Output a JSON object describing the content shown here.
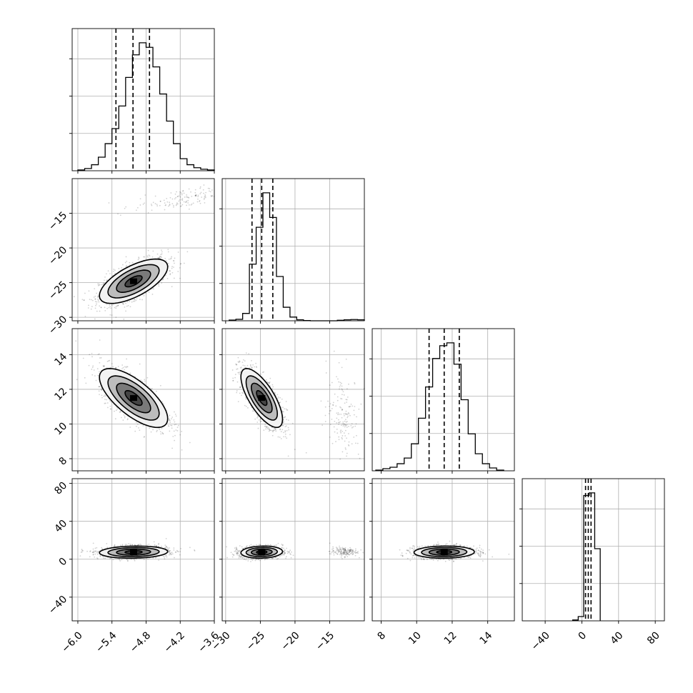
{
  "chart_data": {
    "type": "corner",
    "title": "",
    "grid": true,
    "quantile_lines": "dashed",
    "parameters": [
      {
        "xlim": [
          -6.1,
          -3.6
        ],
        "ticks": [
          -6.0,
          -5.4,
          -4.8,
          -4.2,
          -3.6
        ],
        "tick_labels": [
          "−6.0",
          "−5.4",
          "−4.8",
          "−4.2",
          "−3.6"
        ],
        "quantiles": [
          -5.33,
          -5.03,
          -4.74
        ]
      },
      {
        "xlim": [
          -30.5,
          -10
        ],
        "ticks": [
          -30,
          -25,
          -20,
          -15
        ],
        "tick_labels": [
          "−30",
          "−25",
          "−20",
          "−15"
        ],
        "quantiles": [
          -26.2,
          -24.8,
          -23.2
        ]
      },
      {
        "xlim": [
          7.5,
          15.5
        ],
        "ticks": [
          8,
          10,
          12,
          14
        ],
        "tick_labels": [
          "8",
          "10",
          "12",
          "14"
        ],
        "quantiles": [
          10.7,
          11.55,
          12.4
        ]
      },
      {
        "xlim": [
          -65,
          90
        ],
        "ticks": [
          -40,
          0,
          40,
          80
        ],
        "tick_labels": [
          "−40",
          "0",
          "40",
          "80"
        ],
        "quantiles": [
          4.0,
          7.0,
          10.0
        ]
      }
    ],
    "diagonal_histograms": [
      {
        "bins_from": -6.0,
        "bins_to": -3.6,
        "counts": [
          1,
          3,
          8,
          18,
          36,
          56,
          86,
          124,
          154,
          170,
          164,
          138,
          102,
          66,
          36,
          16,
          8,
          4,
          2,
          1
        ]
      },
      {
        "bins_from": -29.5,
        "bins_to": -10,
        "counts": [
          3,
          6,
          30,
          230,
          380,
          520,
          420,
          180,
          55,
          15,
          4,
          1,
          0,
          0,
          0,
          0,
          2,
          4,
          5,
          4
        ]
      },
      {
        "bins_from": 7.7,
        "bins_to": 14.9,
        "counts": [
          1,
          3,
          5,
          10,
          18,
          38,
          74,
          118,
          158,
          176,
          180,
          150,
          100,
          52,
          24,
          10,
          4,
          1
        ]
      },
      {
        "bins_from": -10,
        "bins_to": 20,
        "counts": [
          1,
          5,
          146,
          149,
          84
        ]
      }
    ],
    "pair_blobs": [
      {
        "row": 1,
        "col": 0,
        "center": [
          -5.02,
          -24.8
        ],
        "sd": [
          0.3,
          1.6
        ],
        "corr": 0.65,
        "secondary": {
          "center": [
            -4.1,
            -12.8
          ],
          "sd": [
            0.45,
            0.9
          ],
          "corr": 0.6
        }
      },
      {
        "row": 2,
        "col": 0,
        "center": [
          -5.02,
          11.5
        ],
        "sd": [
          0.3,
          0.85
        ],
        "corr": -0.7
      },
      {
        "row": 2,
        "col": 1,
        "center": [
          -24.8,
          11.5
        ],
        "sd": [
          1.5,
          0.85
        ],
        "corr": -0.72,
        "secondary": {
          "center": [
            -13,
            10.6
          ],
          "sd": [
            1.2,
            1.2
          ],
          "corr": -0.2
        }
      },
      {
        "row": 3,
        "col": 0,
        "center": [
          -5.02,
          7.5
        ],
        "sd": [
          0.3,
          3.2
        ],
        "corr": 0.1
      },
      {
        "row": 3,
        "col": 1,
        "center": [
          -24.8,
          7.5
        ],
        "sd": [
          1.5,
          3.2
        ],
        "corr": 0.1,
        "secondary": {
          "center": [
            -13,
            8.0
          ],
          "sd": [
            1.0,
            2.5
          ],
          "corr": 0
        }
      },
      {
        "row": 3,
        "col": 2,
        "center": [
          11.55,
          7.5
        ],
        "sd": [
          0.85,
          3.2
        ],
        "corr": 0.05
      }
    ],
    "y_axis_ticks": [
      null,
      {
        "ticks": [
          -30,
          -25,
          -20,
          -15
        ],
        "labels": [
          "−30",
          "−25",
          "−20",
          "−15"
        ],
        "ylim": [
          -30.5,
          -10
        ]
      },
      {
        "ticks": [
          8,
          10,
          12,
          14
        ],
        "labels": [
          "8",
          "10",
          "12",
          "14"
        ],
        "ylim": [
          7.3,
          15.5
        ]
      },
      {
        "ticks": [
          -40,
          0,
          40,
          80
        ],
        "labels": [
          "−40",
          "0",
          "40",
          "80"
        ],
        "ylim": [
          -65,
          85
        ]
      }
    ]
  }
}
